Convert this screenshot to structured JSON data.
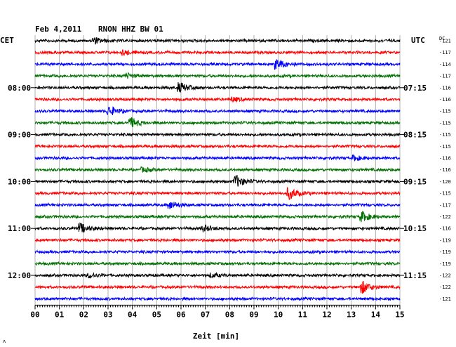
{
  "header": {
    "date": "Feb 4,2011",
    "station": "RNON HHZ BW 01",
    "left_tz": "CET",
    "right_tz": "UTC",
    "dc_label": "DC"
  },
  "colors": {
    "trace_cycle": [
      "#000000",
      "#ff0000",
      "#0000ff",
      "#007000"
    ],
    "grid": "#b0b0b0",
    "frame": "#000000"
  },
  "chart_data": {
    "type": "line",
    "title": "Feb 4,2011    RNON HHZ BW 01",
    "xlabel": "Zeit [min]",
    "xlim": [
      0,
      15
    ],
    "x_ticks": [
      "00",
      "01",
      "02",
      "03",
      "04",
      "05",
      "06",
      "07",
      "08",
      "09",
      "10",
      "11",
      "12",
      "13",
      "14",
      "15"
    ],
    "rows_per_hour": 4,
    "left_hour_labels": [
      {
        "row": 4,
        "text": "08:00"
      },
      {
        "row": 8,
        "text": "09:00"
      },
      {
        "row": 12,
        "text": "10:00"
      },
      {
        "row": 16,
        "text": "11:00"
      },
      {
        "row": 20,
        "text": "12:00"
      }
    ],
    "right_hour_labels": [
      {
        "row": 4,
        "text": "07:15"
      },
      {
        "row": 8,
        "text": "08:15"
      },
      {
        "row": 12,
        "text": "09:15"
      },
      {
        "row": 16,
        "text": "10:15"
      },
      {
        "row": 20,
        "text": "11:15"
      }
    ],
    "dc_offsets": [
      -121,
      -117,
      -114,
      -117,
      -116,
      -116,
      -115,
      -115,
      -115,
      -115,
      -116,
      -116,
      -120,
      -115,
      -117,
      -122,
      -116,
      -119,
      -119,
      -119,
      -122,
      -122,
      -121
    ],
    "events": [
      {
        "row": 0,
        "minute": 2.5,
        "amp": 0.6
      },
      {
        "row": 1,
        "minute": 3.7,
        "amp": 0.5
      },
      {
        "row": 2,
        "minute": 10.0,
        "amp": 1.0
      },
      {
        "row": 3,
        "minute": 3.8,
        "amp": 0.5
      },
      {
        "row": 4,
        "minute": 6.0,
        "amp": 1.0
      },
      {
        "row": 5,
        "minute": 8.2,
        "amp": 0.4
      },
      {
        "row": 6,
        "minute": 3.1,
        "amp": 1.0
      },
      {
        "row": 7,
        "minute": 4.0,
        "amp": 1.0
      },
      {
        "row": 10,
        "minute": 13.2,
        "amp": 0.5
      },
      {
        "row": 11,
        "minute": 4.5,
        "amp": 0.4
      },
      {
        "row": 12,
        "minute": 8.3,
        "amp": 1.3
      },
      {
        "row": 13,
        "minute": 10.5,
        "amp": 1.2
      },
      {
        "row": 14,
        "minute": 5.6,
        "amp": 0.8
      },
      {
        "row": 15,
        "minute": 13.5,
        "amp": 1.0
      },
      {
        "row": 16,
        "minute": 1.9,
        "amp": 1.0
      },
      {
        "row": 16,
        "minute": 7.0,
        "amp": 0.6
      },
      {
        "row": 20,
        "minute": 2.3,
        "amp": 0.5
      },
      {
        "row": 20,
        "minute": 7.3,
        "amp": 0.4
      },
      {
        "row": 21,
        "minute": 13.5,
        "amp": 1.3
      }
    ]
  }
}
